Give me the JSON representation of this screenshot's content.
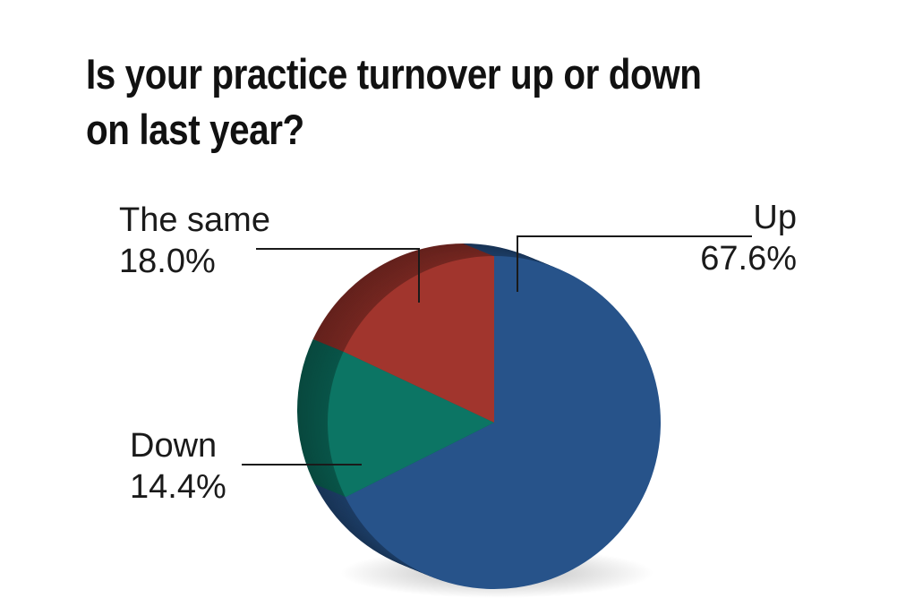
{
  "chart_data": {
    "type": "pie",
    "title": "Is your practice turnover up or down on last year?",
    "slices": [
      {
        "label": "Up",
        "value": 67.6,
        "display": "67.6%",
        "color": "#27538A"
      },
      {
        "label": "Down",
        "value": 14.4,
        "display": "14.4%",
        "color": "#0C7564"
      },
      {
        "label": "The same",
        "value": 18.0,
        "display": "18.0%",
        "color": "#A1352D"
      }
    ],
    "legend": "none",
    "style": "3d-extruded"
  }
}
